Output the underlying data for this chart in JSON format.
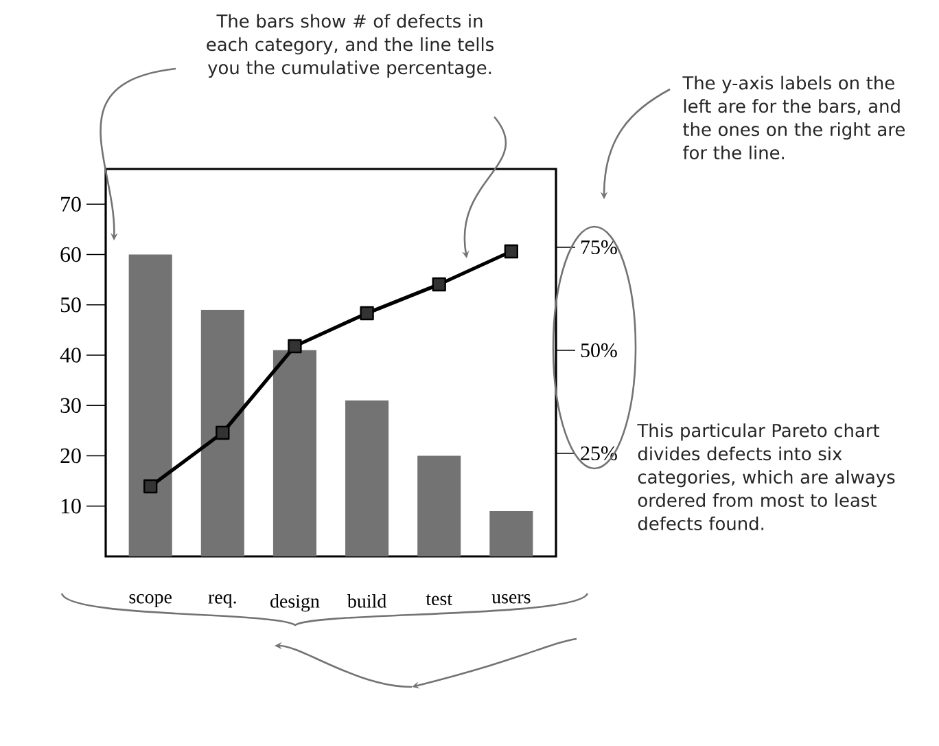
{
  "chart_data": {
    "type": "bar",
    "categories": [
      "scope",
      "req.",
      "design",
      "build",
      "test",
      "users"
    ],
    "series": [
      {
        "type": "bar",
        "color": "#737373",
        "values": [
          60,
          49,
          41,
          31,
          20,
          9
        ]
      },
      {
        "type": "line",
        "axis": "y2",
        "color": "#000000",
        "marker": "square",
        "values": [
          17,
          30,
          51,
          59,
          66,
          74
        ]
      }
    ],
    "ylim": [
      0,
      77
    ],
    "yticks": [
      10,
      20,
      30,
      40,
      50,
      60,
      70
    ],
    "y2lim": [
      0,
      94
    ],
    "y2ticks": [
      {
        "value": 25,
        "label": "25%"
      },
      {
        "value": 50,
        "label": "50%"
      },
      {
        "value": 75,
        "label": "75%"
      }
    ],
    "annotations": [
      "The bars show # of defects in each category, and the line tells you the cumulative percentage.",
      "The y-axis labels on the left are for the bars, and the ones on the right are for the line.",
      "This particular Pareto chart divides defects into six categories, which are always ordered from most to least defects found."
    ]
  }
}
